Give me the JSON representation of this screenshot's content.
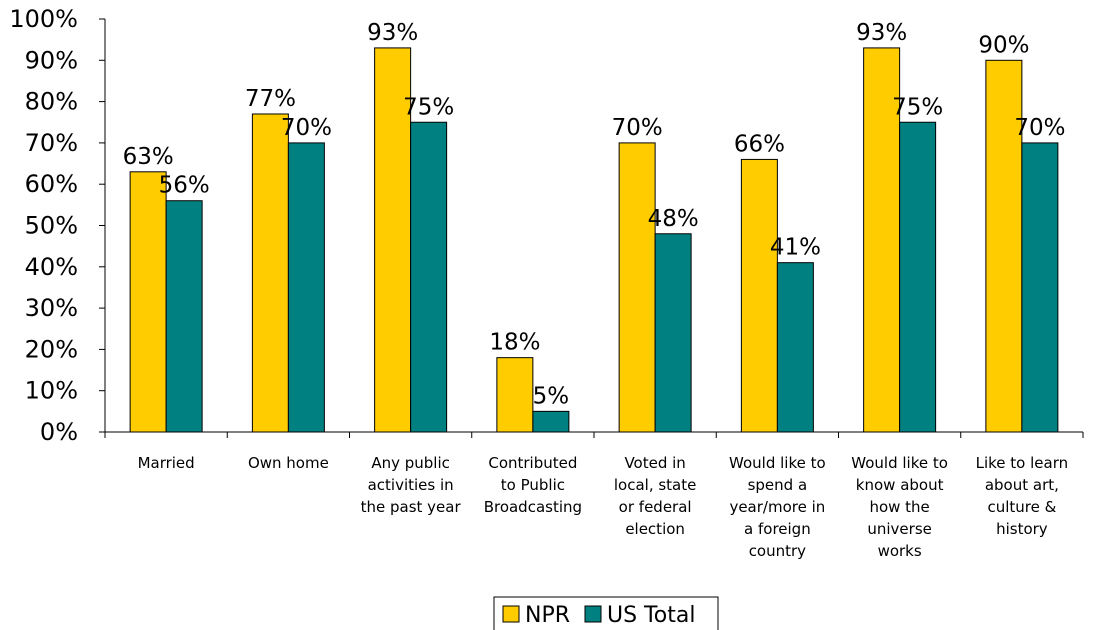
{
  "chart_data": {
    "type": "bar",
    "title": "",
    "xlabel": "",
    "ylabel": "",
    "ylim": [
      0,
      100
    ],
    "yticks": [
      "0%",
      "10%",
      "20%",
      "30%",
      "40%",
      "50%",
      "60%",
      "70%",
      "80%",
      "90%",
      "100%"
    ],
    "grid": false,
    "legend_position": "bottom",
    "categories": [
      [
        "Married"
      ],
      [
        "Own home"
      ],
      [
        "Any public",
        "activities in",
        "the past year"
      ],
      [
        "Contributed",
        "to Public",
        "Broadcasting"
      ],
      [
        "Voted in",
        "local, state",
        "or federal",
        "election"
      ],
      [
        "Would like to",
        "spend a",
        "year/more in",
        "a foreign",
        "country"
      ],
      [
        "Would like to",
        "know about",
        "how the",
        "universe",
        "works"
      ],
      [
        "Like to learn",
        "about art,",
        "culture &",
        "history"
      ]
    ],
    "series": [
      {
        "name": "NPR",
        "color": "#FFCC00",
        "values": [
          63,
          77,
          93,
          18,
          70,
          66,
          93,
          90
        ],
        "labels": [
          "63%",
          "77%",
          "93%",
          "18%",
          "70%",
          "66%",
          "93%",
          "90%"
        ]
      },
      {
        "name": "US Total",
        "color": "#008080",
        "values": [
          56,
          70,
          75,
          5,
          48,
          41,
          75,
          70
        ],
        "labels": [
          "56%",
          "70%",
          "75%",
          "5%",
          "48%",
          "41%",
          "75%",
          "70%"
        ]
      }
    ]
  }
}
